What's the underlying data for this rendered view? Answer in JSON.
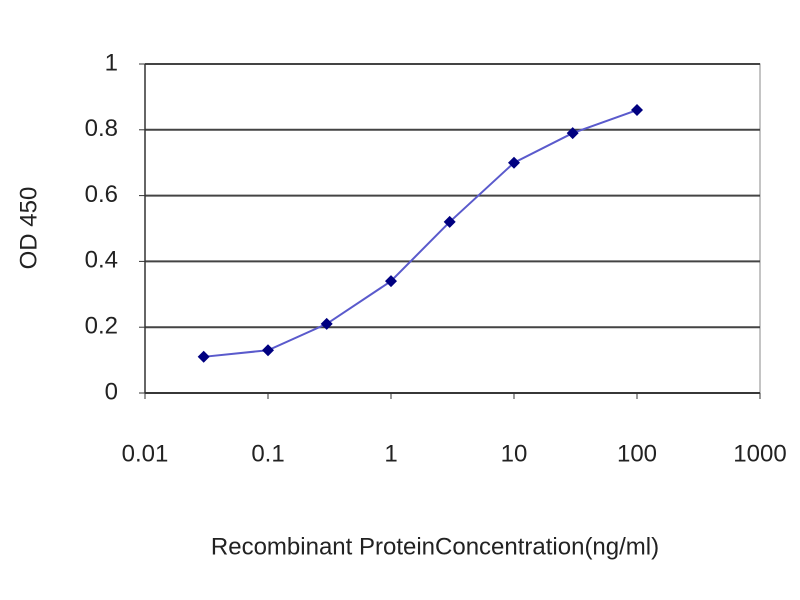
{
  "chart_data": {
    "type": "line",
    "x_label": "Recombinant ProteinConcentration(ng/ml)",
    "y_label": "OD 450",
    "x": [
      0.03,
      0.1,
      0.3,
      1,
      3,
      10,
      30,
      100
    ],
    "values": [
      0.11,
      0.13,
      0.21,
      0.34,
      0.52,
      0.7,
      0.79,
      0.86
    ],
    "color": "#5a5acc",
    "marker_color": "#000080",
    "x_log": true,
    "xlim": [
      0.01,
      1000
    ],
    "xticks": [
      0.01,
      0.1,
      1,
      10,
      100,
      1000
    ],
    "ylim": [
      0,
      1
    ],
    "yticks": [
      0,
      0.2,
      0.4,
      0.6,
      0.8,
      1
    ],
    "grid": true
  }
}
